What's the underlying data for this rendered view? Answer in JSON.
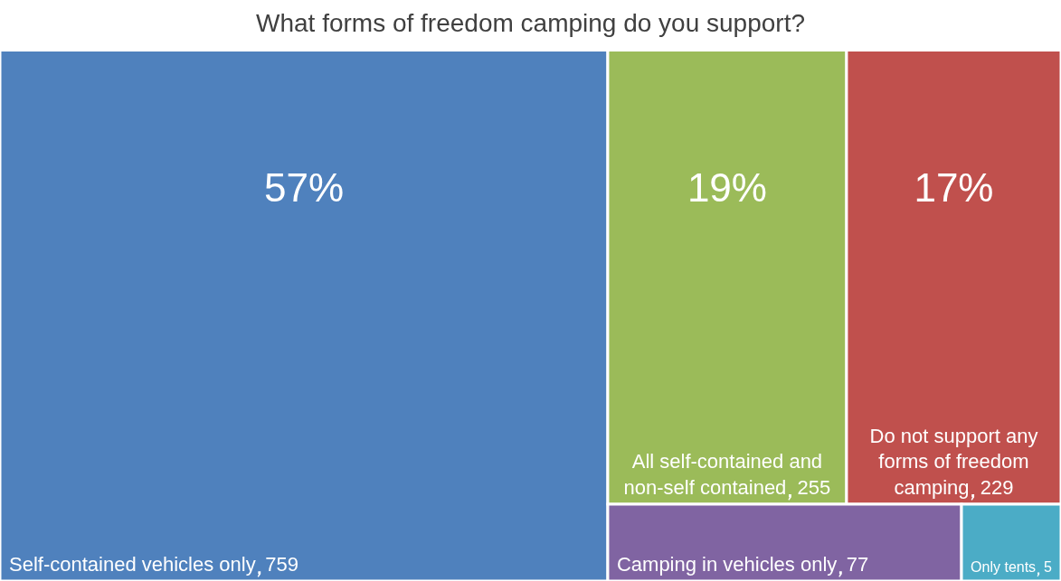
{
  "chart_data": {
    "type": "other",
    "title": "What forms of freedom camping do you support?",
    "categories": [
      "Self-contained vehicles only",
      "All self-contained and non-self contained",
      "Do not support any forms of freedom camping",
      "Camping in vehicles only",
      "Only tents"
    ],
    "values": [
      759,
      255,
      229,
      77,
      5
    ],
    "data_labels": true,
    "annotations": [
      "57%",
      "19%",
      "17%"
    ],
    "colors": [
      "#4f81bd",
      "#9bbb59",
      "#c0504d",
      "#8064a2",
      "#4bacc6"
    ]
  }
}
